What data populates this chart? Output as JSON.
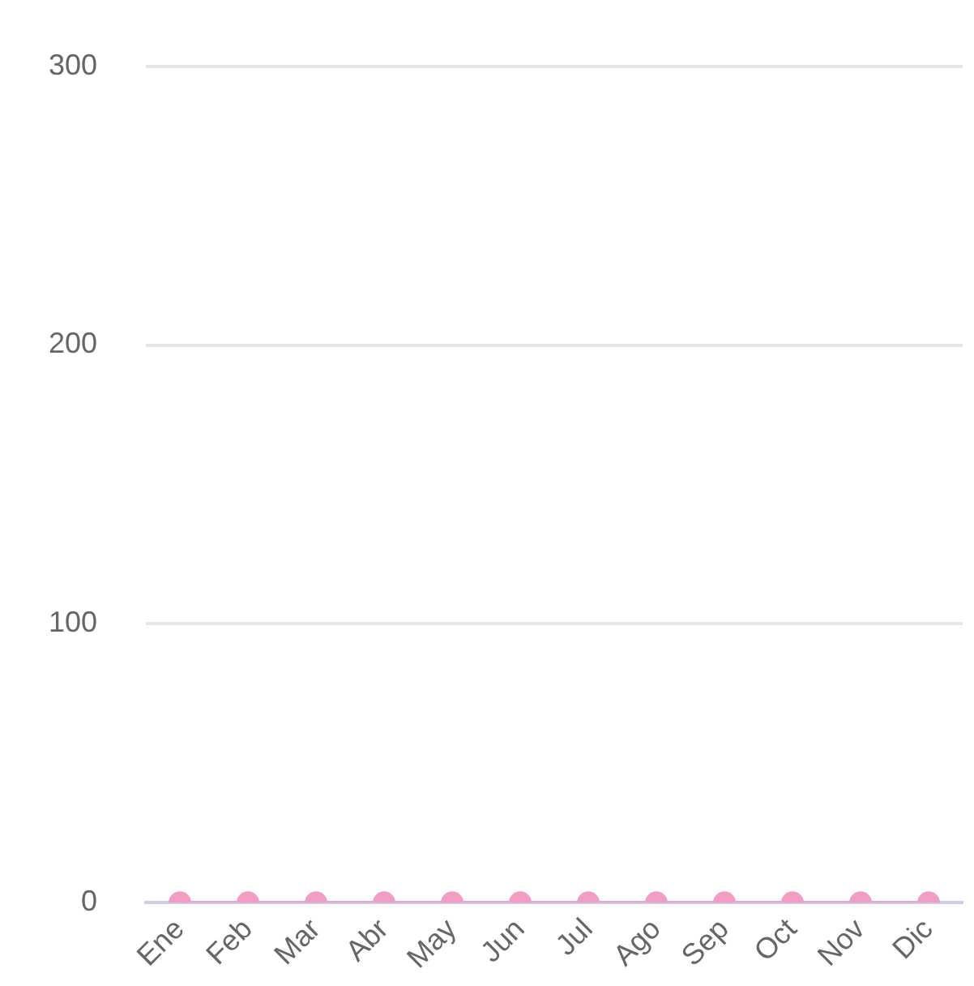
{
  "chart_data": {
    "type": "line",
    "categories": [
      "Ene",
      "Feb",
      "Mar",
      "Abr",
      "May",
      "Jun",
      "Jul",
      "Ago",
      "Sep",
      "Oct",
      "Nov",
      "Dic"
    ],
    "series": [
      {
        "color": "#f09ec6",
        "values": [
          0,
          0,
          0,
          0,
          0,
          0,
          0,
          0,
          0,
          0,
          0,
          0
        ]
      }
    ],
    "ylim": [
      0,
      300
    ],
    "yticks": [
      0,
      100,
      200,
      300
    ],
    "grid": "y",
    "legend": false,
    "marker": "circle",
    "line_style": "solid"
  }
}
